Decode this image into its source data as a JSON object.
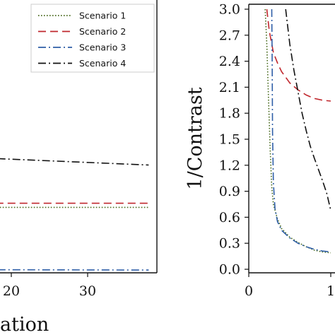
{
  "chart_data": [
    {
      "type": "line",
      "xlabel": "ation",
      "ylabel": "",
      "xlim": [
        8.5,
        38
      ],
      "ylim": [
        0,
        1
      ],
      "x_ticks": [
        20,
        30
      ],
      "legend_position": "top-right",
      "series": [
        {
          "name": "Scenario 1",
          "color": "#4a6b1f",
          "dash": "dotted",
          "x": [
            8.5,
            38
          ],
          "y": [
            0.24,
            0.24
          ]
        },
        {
          "name": "Scenario 2",
          "color": "#c0272d",
          "dash": "dashed",
          "x": [
            8.5,
            38
          ],
          "y": [
            0.255,
            0.255
          ]
        },
        {
          "name": "Scenario 3",
          "color": "#2f5fa8",
          "dash": "dashdot",
          "x": [
            8.5,
            38
          ],
          "y": [
            0.012,
            0.01
          ]
        },
        {
          "name": "Scenario 4",
          "color": "#111111",
          "dash": "dashdot",
          "x": [
            8.5,
            38
          ],
          "y": [
            0.43,
            0.395
          ]
        }
      ]
    },
    {
      "type": "line",
      "xlabel": "",
      "ylabel": "1/Contrast",
      "xlim": [
        0,
        1.35
      ],
      "ylim": [
        0,
        3.0
      ],
      "x_ticks": [
        0,
        1
      ],
      "x_tick_labels": [
        "0",
        "1"
      ],
      "y_ticks": [
        0,
        0.3,
        0.6,
        0.9,
        1.2,
        1.5,
        1.8,
        2.1,
        2.4,
        2.7,
        3.0
      ],
      "y_tick_labels": [
        "0.0",
        "0.3",
        "0.6",
        "0.9",
        "1.2",
        "1.5",
        "1.8",
        "2.1",
        "2.4",
        "2.7",
        "3.0"
      ],
      "series": [
        {
          "name": "Scenario 1",
          "color": "#4a6b1f",
          "dash": "dotted",
          "x": [
            0.2,
            0.22,
            0.24,
            0.26,
            0.28,
            0.3,
            0.35,
            0.4,
            0.5,
            0.6,
            0.7,
            0.8,
            0.9,
            1.0
          ],
          "y": [
            3.0,
            2.6,
            2.0,
            1.4,
            0.95,
            0.75,
            0.58,
            0.47,
            0.37,
            0.31,
            0.26,
            0.22,
            0.2,
            0.19
          ]
        },
        {
          "name": "Scenario 2",
          "color": "#c0272d",
          "dash": "dashed",
          "x": [
            0.22,
            0.25,
            0.3,
            0.35,
            0.4,
            0.5,
            0.6,
            0.7,
            0.8,
            0.9,
            1.0
          ],
          "y": [
            3.0,
            2.75,
            2.5,
            2.38,
            2.28,
            2.15,
            2.07,
            2.01,
            1.97,
            1.95,
            1.94
          ]
        },
        {
          "name": "Scenario 3",
          "color": "#2f5fa8",
          "dash": "dashdot",
          "x": [
            0.28,
            0.285,
            0.29,
            0.3,
            0.32,
            0.35,
            0.4,
            0.5,
            0.6,
            0.7,
            0.8,
            0.9,
            1.0
          ],
          "y": [
            3.0,
            2.4,
            1.6,
            1.0,
            0.7,
            0.55,
            0.45,
            0.36,
            0.3,
            0.26,
            0.23,
            0.21,
            0.2
          ]
        },
        {
          "name": "Scenario 4",
          "color": "#111111",
          "dash": "dashdot",
          "x": [
            0.45,
            0.5,
            0.55,
            0.6,
            0.65,
            0.7,
            0.75,
            0.8,
            0.85,
            0.9,
            0.95,
            1.0
          ],
          "y": [
            3.0,
            2.6,
            2.3,
            2.05,
            1.8,
            1.6,
            1.42,
            1.28,
            1.15,
            1.02,
            0.88,
            0.68
          ]
        }
      ]
    }
  ]
}
